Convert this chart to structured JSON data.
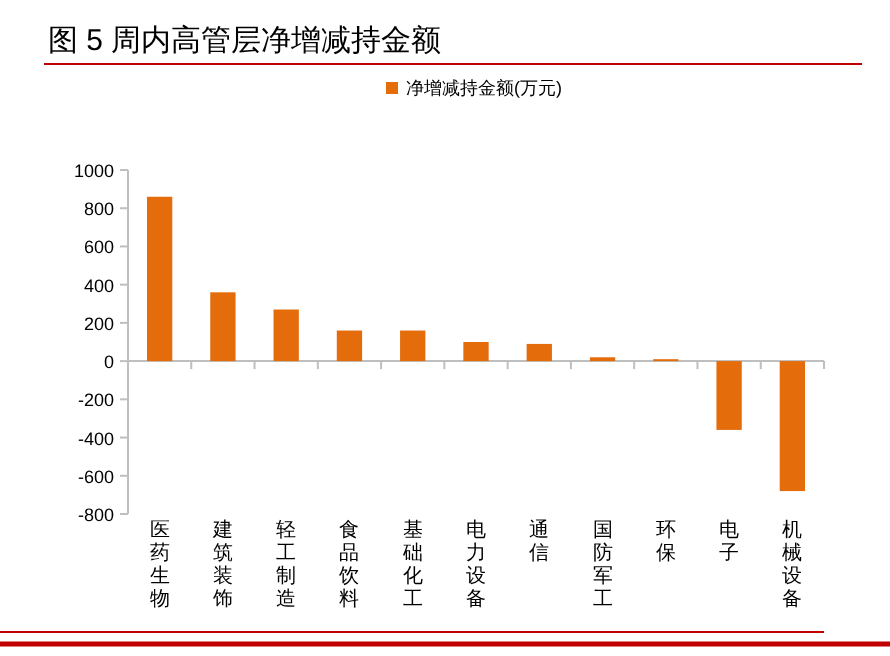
{
  "chart_data": {
    "type": "bar",
    "title": "图 5 周内高管层净增减持金额",
    "categories": [
      "医药生物",
      "建筑装饰",
      "轻工制造",
      "食品饮料",
      "基础化工",
      "电力设备",
      "通信",
      "国防军工",
      "环保",
      "电子",
      "机械设备"
    ],
    "series": [
      {
        "name": "净增减持金额(万元)",
        "color": "#e46c0a",
        "values": [
          860,
          360,
          270,
          160,
          160,
          100,
          90,
          20,
          10,
          -360,
          -680
        ]
      }
    ],
    "ylim": [
      -800,
      1000
    ],
    "yticks": [
      -800,
      -600,
      -400,
      -200,
      0,
      200,
      400,
      600,
      800,
      1000
    ],
    "legend": "top"
  }
}
